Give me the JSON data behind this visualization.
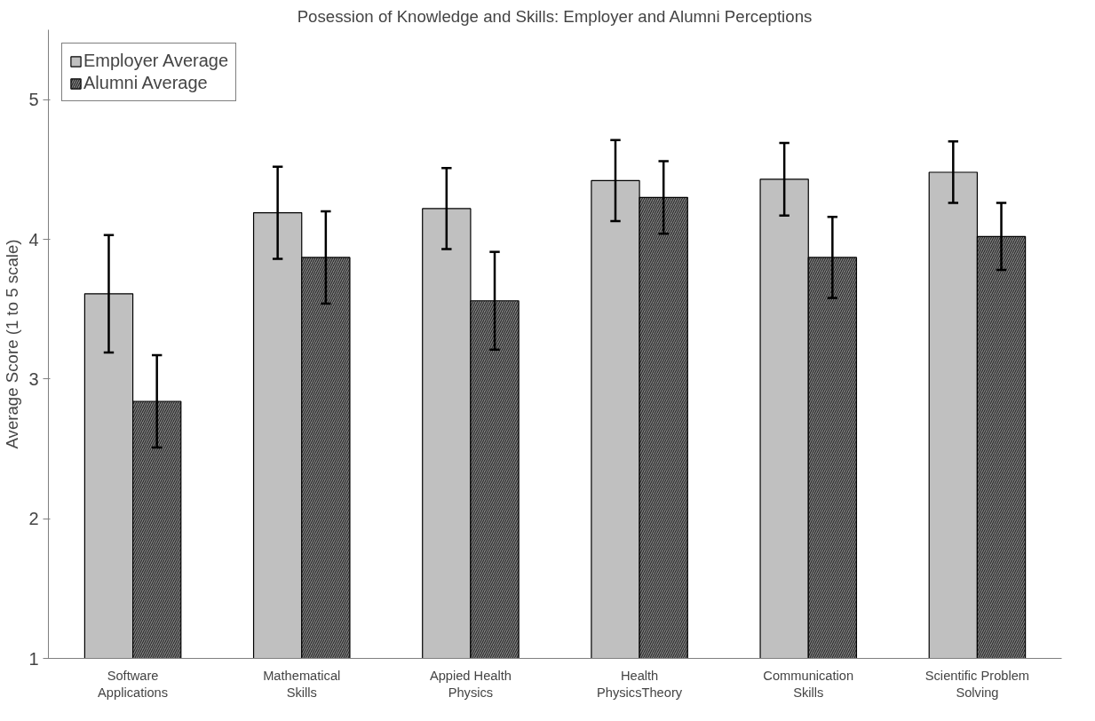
{
  "chart_data": {
    "type": "bar",
    "title": "Posession of Knowledge and Skills: Employer and Alumni Perceptions",
    "ylabel": "Average Score (1 to 5 scale)",
    "categories": [
      "Software Applications",
      "Mathematical Skills",
      "Appied Health Physics",
      "Health PhysicsTheory",
      "Communication Skills",
      "Scientific Problem Solving"
    ],
    "series": [
      {
        "name": "Employer Average",
        "color": "#c0c0c0",
        "values": [
          3.61,
          4.19,
          4.22,
          4.42,
          4.43,
          4.48
        ],
        "errors": [
          0.42,
          0.33,
          0.29,
          0.29,
          0.26,
          0.22
        ]
      },
      {
        "name": "Alumni Average",
        "color": "#808080",
        "values": [
          2.84,
          3.87,
          3.56,
          4.3,
          3.87,
          4.02
        ],
        "errors": [
          0.33,
          0.33,
          0.35,
          0.26,
          0.29,
          0.24
        ]
      }
    ],
    "ylim": [
      1,
      5.5
    ],
    "yticks": [
      1,
      2,
      3,
      4,
      5
    ],
    "grid": false,
    "legend": "top left"
  }
}
